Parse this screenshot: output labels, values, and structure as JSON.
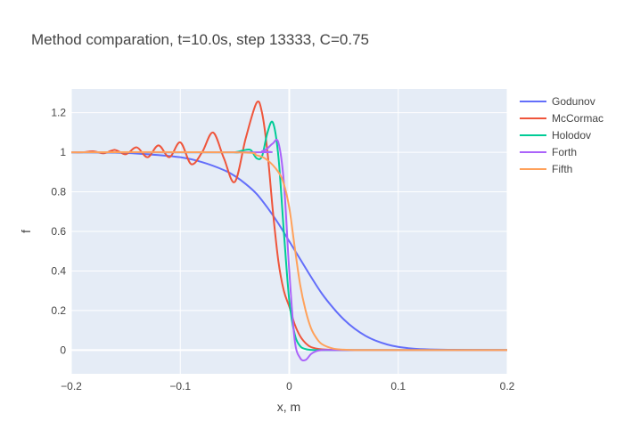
{
  "chart_data": {
    "type": "line",
    "title": "Method comparation, t=10.0s, step 13333, C=0.75",
    "xlabel": "x, m",
    "ylabel": "f",
    "xlim": [
      -0.2,
      0.2
    ],
    "ylim": [
      -0.12,
      1.32
    ],
    "xticks": [
      -0.2,
      -0.1,
      0,
      0.1,
      0.2
    ],
    "xtick_labels": [
      "−0.2",
      "−0.1",
      "0",
      "0.1",
      "0.2"
    ],
    "yticks": [
      0,
      0.2,
      0.4,
      0.6,
      0.8,
      1,
      1.2
    ],
    "ytick_labels": [
      "0",
      "0.2",
      "0.4",
      "0.6",
      "0.8",
      "1",
      "1.2"
    ],
    "grid": true,
    "legend_position": "top-right",
    "series": [
      {
        "name": "Godunov",
        "color": "#636efa",
        "x": [
          -0.2,
          -0.16,
          -0.13,
          -0.1,
          -0.08,
          -0.06,
          -0.05,
          -0.04,
          -0.03,
          -0.02,
          -0.01,
          0,
          0.01,
          0.02,
          0.03,
          0.04,
          0.05,
          0.06,
          0.07,
          0.08,
          0.09,
          0.1,
          0.11,
          0.12,
          0.14,
          0.16,
          0.2
        ],
        "y": [
          1.0,
          0.998,
          0.99,
          0.975,
          0.95,
          0.91,
          0.88,
          0.84,
          0.79,
          0.72,
          0.64,
          0.55,
          0.46,
          0.37,
          0.285,
          0.215,
          0.155,
          0.108,
          0.072,
          0.046,
          0.028,
          0.016,
          0.009,
          0.005,
          0.002,
          0.001,
          0.0
        ]
      },
      {
        "name": "McCormac",
        "color": "#ef553b",
        "x": [
          -0.2,
          -0.19,
          -0.18,
          -0.17,
          -0.16,
          -0.15,
          -0.14,
          -0.13,
          -0.12,
          -0.11,
          -0.1,
          -0.09,
          -0.08,
          -0.07,
          -0.06,
          -0.05,
          -0.04,
          -0.03,
          -0.025,
          -0.02,
          -0.015,
          -0.01,
          -0.005,
          0,
          0.005,
          0.01,
          0.015,
          0.02,
          0.03,
          0.05,
          0.1,
          0.2
        ],
        "y": [
          1.0,
          1.0,
          1.005,
          0.995,
          1.012,
          0.99,
          1.025,
          0.975,
          1.035,
          0.975,
          1.05,
          0.94,
          1.0,
          1.1,
          0.97,
          0.85,
          1.07,
          1.25,
          1.2,
          1.0,
          0.7,
          0.45,
          0.3,
          0.22,
          0.13,
          0.07,
          0.035,
          0.015,
          0.004,
          0.0,
          0.0,
          0.0
        ]
      },
      {
        "name": "Holodov",
        "color": "#00cc96",
        "x": [
          -0.2,
          -0.06,
          -0.05,
          -0.04,
          -0.035,
          -0.03,
          -0.025,
          -0.02,
          -0.015,
          -0.01,
          -0.005,
          0,
          0.005,
          0.01,
          0.015,
          0.02,
          0.03,
          0.05,
          0.1,
          0.2
        ],
        "y": [
          1.0,
          1.0,
          1.0,
          1.012,
          1.01,
          0.97,
          0.98,
          1.1,
          1.15,
          0.98,
          0.6,
          0.25,
          0.08,
          0.02,
          0.005,
          0.001,
          0.0,
          0.0,
          0.0,
          0.0
        ],
        "note_hidden": false
      },
      {
        "name": "Forth",
        "color": "#ab63fa",
        "x": [
          -0.2,
          -0.03,
          -0.025,
          -0.02,
          -0.015,
          -0.01,
          -0.005,
          0,
          0.005,
          0.01,
          0.015,
          0.02,
          0.025,
          0.03,
          0.04,
          0.05,
          0.1,
          0.2
        ],
        "y": [
          1.0,
          1.0,
          1.005,
          1.02,
          1.045,
          1.05,
          0.85,
          0.4,
          0.05,
          -0.04,
          -0.05,
          -0.02,
          -0.005,
          0.0,
          0.0,
          0.0,
          0.0,
          0.0
        ]
      },
      {
        "name": "Fifth",
        "color": "#ffa15a",
        "x": [
          -0.2,
          -0.05,
          -0.03,
          -0.02,
          -0.01,
          -0.005,
          0,
          0.005,
          0.01,
          0.015,
          0.02,
          0.025,
          0.03,
          0.04,
          0.05,
          0.06,
          0.08,
          0.2
        ],
        "y": [
          1.0,
          1.0,
          0.985,
          0.96,
          0.9,
          0.84,
          0.72,
          0.52,
          0.33,
          0.2,
          0.11,
          0.06,
          0.03,
          0.008,
          0.002,
          0.0,
          0.0,
          0.0
        ]
      }
    ]
  }
}
